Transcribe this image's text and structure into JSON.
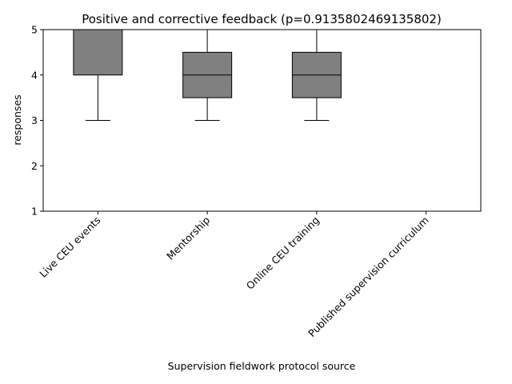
{
  "chart_data": {
    "type": "boxplot",
    "title": "Positive and corrective feedback (p=0.9135802469135802)",
    "xlabel": "Supervision fieldwork protocol source",
    "ylabel": "responses",
    "ylim": [
      1,
      5
    ],
    "yticks": [
      1,
      2,
      3,
      4,
      5
    ],
    "grid": false,
    "box_color": "#808080",
    "line_color": "#000000",
    "categories": [
      "Live CEU events",
      "Mentorship",
      "Online CEU training",
      "Published supervision curriculum"
    ],
    "boxes": [
      {
        "whisker_low": 3,
        "q1": 4,
        "median": 5,
        "q3": 5,
        "whisker_high": 5
      },
      {
        "whisker_low": 3,
        "q1": 3.5,
        "median": 4,
        "q3": 4.5,
        "whisker_high": 5
      },
      {
        "whisker_low": 3,
        "q1": 3.5,
        "median": 4,
        "q3": 4.5,
        "whisker_high": 5
      },
      {
        "whisker_low": 5,
        "q1": 5,
        "median": 5,
        "q3": 5,
        "whisker_high": 5
      }
    ]
  }
}
